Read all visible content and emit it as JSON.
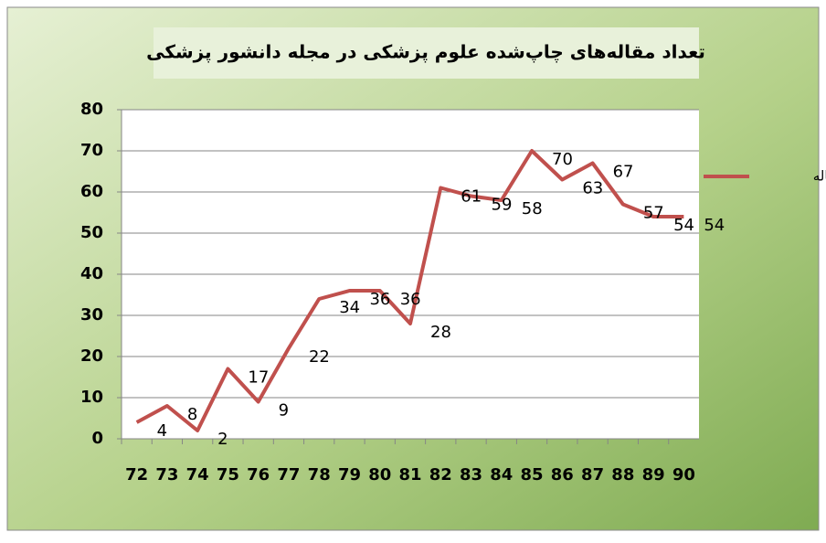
{
  "chart_data": {
    "type": "line",
    "title": "تعداد مقاله‌های چاپ‌شده علوم پزشکی در مجله دانشور پزشکی",
    "categories": [
      "72",
      "73",
      "74",
      "75",
      "76",
      "77",
      "78",
      "79",
      "80",
      "81",
      "82",
      "83",
      "84",
      "85",
      "86",
      "87",
      "88",
      "89",
      "90"
    ],
    "series": [
      {
        "name": "تعداد مقاله",
        "color": "#c0504d",
        "values": [
          4,
          8,
          2,
          17,
          9,
          22,
          34,
          36,
          36,
          28,
          61,
          59,
          58,
          70,
          63,
          67,
          57,
          54,
          54
        ]
      }
    ],
    "ylim": [
      0,
      80
    ],
    "yticks": [
      0,
      10,
      20,
      30,
      40,
      50,
      60,
      70,
      80
    ],
    "grid": true,
    "legend": "right"
  }
}
